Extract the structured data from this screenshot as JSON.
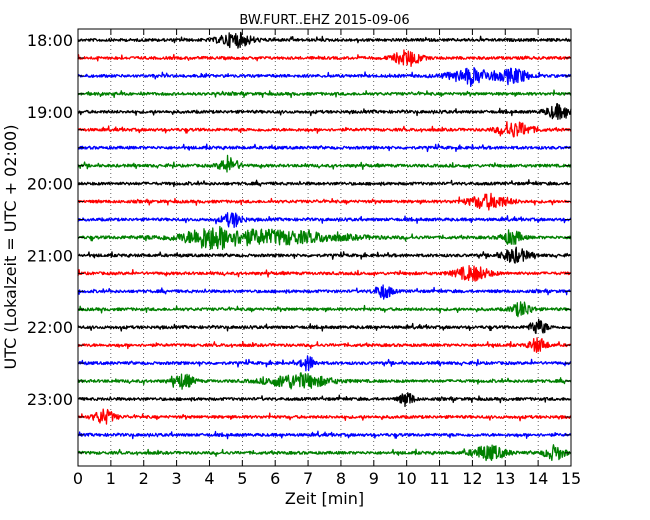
{
  "chart_data": {
    "type": "line",
    "title": "BW.FURT..EHZ 2015-09-06",
    "xlabel": "Zeit  [min]",
    "ylabel": "UTC (Lokalzeit = UTC + 02:00)",
    "xlim": [
      0,
      15
    ],
    "x_ticks": [
      0,
      1,
      2,
      3,
      4,
      5,
      6,
      7,
      8,
      9,
      10,
      11,
      12,
      13,
      14,
      15
    ],
    "x_tick_labels": [
      "0",
      "1",
      "2",
      "3",
      "4",
      "5",
      "6",
      "7",
      "8",
      "9",
      "10",
      "11",
      "12",
      "13",
      "14",
      "15"
    ],
    "y_tick_labels": [
      "18:00",
      "19:00",
      "20:00",
      "21:00",
      "22:00",
      "23:00"
    ],
    "grid": {
      "x": true,
      "y": false,
      "style": "dotted"
    },
    "color_cycle": [
      "#000000",
      "#ff0000",
      "#0000ff",
      "#008000"
    ],
    "traces": [
      {
        "start": "18:00",
        "color": "#000000",
        "bursts": [
          [
            4.8,
            0.5
          ]
        ]
      },
      {
        "start": "18:15",
        "color": "#ff0000",
        "bursts": [
          [
            10.0,
            0.4
          ]
        ]
      },
      {
        "start": "18:30",
        "color": "#0000ff",
        "bursts": [
          [
            12.0,
            0.7
          ],
          [
            13.3,
            0.4
          ]
        ]
      },
      {
        "start": "18:45",
        "color": "#008000",
        "bursts": []
      },
      {
        "start": "19:00",
        "color": "#000000",
        "bursts": [
          [
            14.6,
            0.35
          ]
        ]
      },
      {
        "start": "19:15",
        "color": "#ff0000",
        "bursts": [
          [
            13.3,
            0.5
          ]
        ]
      },
      {
        "start": "19:30",
        "color": "#0000ff",
        "bursts": []
      },
      {
        "start": "19:45",
        "color": "#008000",
        "bursts": [
          [
            4.6,
            0.3
          ]
        ]
      },
      {
        "start": "20:00",
        "color": "#000000",
        "bursts": []
      },
      {
        "start": "20:15",
        "color": "#ff0000",
        "bursts": [
          [
            12.5,
            0.6
          ]
        ]
      },
      {
        "start": "20:30",
        "color": "#0000ff",
        "bursts": [
          [
            4.7,
            0.3
          ]
        ]
      },
      {
        "start": "20:45",
        "color": "#008000",
        "bursts": [
          [
            5.6,
            2.3
          ],
          [
            4.0,
            0.6
          ],
          [
            13.2,
            0.3
          ]
        ]
      },
      {
        "start": "21:00",
        "color": "#000000",
        "bursts": [
          [
            13.3,
            0.4
          ]
        ]
      },
      {
        "start": "21:15",
        "color": "#ff0000",
        "bursts": [
          [
            12.0,
            0.5
          ]
        ]
      },
      {
        "start": "21:30",
        "color": "#0000ff",
        "bursts": [
          [
            9.3,
            0.25
          ]
        ]
      },
      {
        "start": "21:45",
        "color": "#008000",
        "bursts": [
          [
            13.5,
            0.3
          ]
        ]
      },
      {
        "start": "22:00",
        "color": "#000000",
        "bursts": [
          [
            14.0,
            0.25
          ]
        ]
      },
      {
        "start": "22:15",
        "color": "#ff0000",
        "bursts": [
          [
            14.0,
            0.25
          ]
        ]
      },
      {
        "start": "22:30",
        "color": "#0000ff",
        "bursts": [
          [
            7.0,
            0.2
          ]
        ]
      },
      {
        "start": "22:45",
        "color": "#008000",
        "bursts": [
          [
            6.7,
            0.9
          ],
          [
            3.2,
            0.3
          ]
        ]
      },
      {
        "start": "23:00",
        "color": "#000000",
        "bursts": [
          [
            10.0,
            0.2
          ]
        ]
      },
      {
        "start": "23:15",
        "color": "#ff0000",
        "bursts": [
          [
            0.8,
            0.3
          ]
        ]
      },
      {
        "start": "23:30",
        "color": "#0000ff",
        "bursts": []
      },
      {
        "start": "23:45",
        "color": "#008000",
        "bursts": [
          [
            12.5,
            0.5
          ],
          [
            14.5,
            0.3
          ]
        ]
      }
    ]
  }
}
